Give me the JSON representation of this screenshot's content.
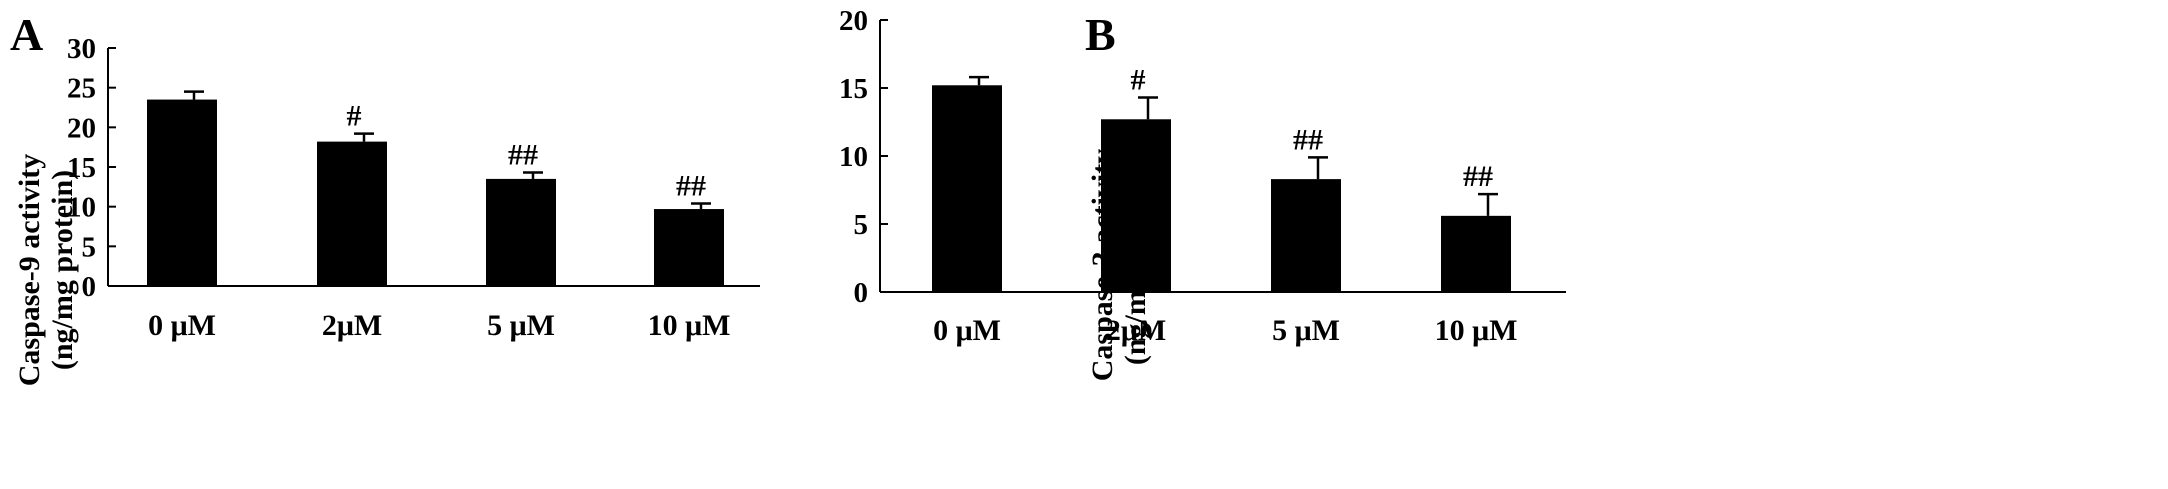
{
  "colors": {
    "bar": "#000000",
    "axis": "#000000",
    "background": "#ffffff"
  },
  "chart_data": [
    {
      "panel": "A",
      "type": "bar",
      "categories": [
        "0 μM",
        "2μM",
        "5 μM",
        "10 μM"
      ],
      "values": [
        23.5,
        18.2,
        13.5,
        9.7
      ],
      "errors": [
        1.0,
        1.0,
        0.8,
        0.7
      ],
      "annotations": [
        "",
        "#",
        "##",
        "##"
      ],
      "ylabel_lines": [
        "Caspase-9 activity",
        "(ng/mg protein)"
      ],
      "ylim": [
        0,
        30
      ],
      "yticks": [
        0,
        5,
        10,
        15,
        20,
        25,
        30
      ],
      "grid": false,
      "legend": false
    },
    {
      "panel": "B",
      "type": "bar",
      "categories": [
        "0 μM",
        "2μM",
        "5 μM",
        "10 μM"
      ],
      "values": [
        15.2,
        12.7,
        8.3,
        5.6
      ],
      "errors": [
        0.6,
        1.6,
        1.6,
        1.6
      ],
      "annotations": [
        "",
        "#",
        "##",
        "##"
      ],
      "ylabel_lines": [
        "Caspase-3 activity",
        "(ng/mg protein)"
      ],
      "ylim": [
        0,
        20
      ],
      "yticks": [
        0,
        5,
        10,
        15,
        20
      ],
      "grid": false,
      "legend": false
    }
  ]
}
